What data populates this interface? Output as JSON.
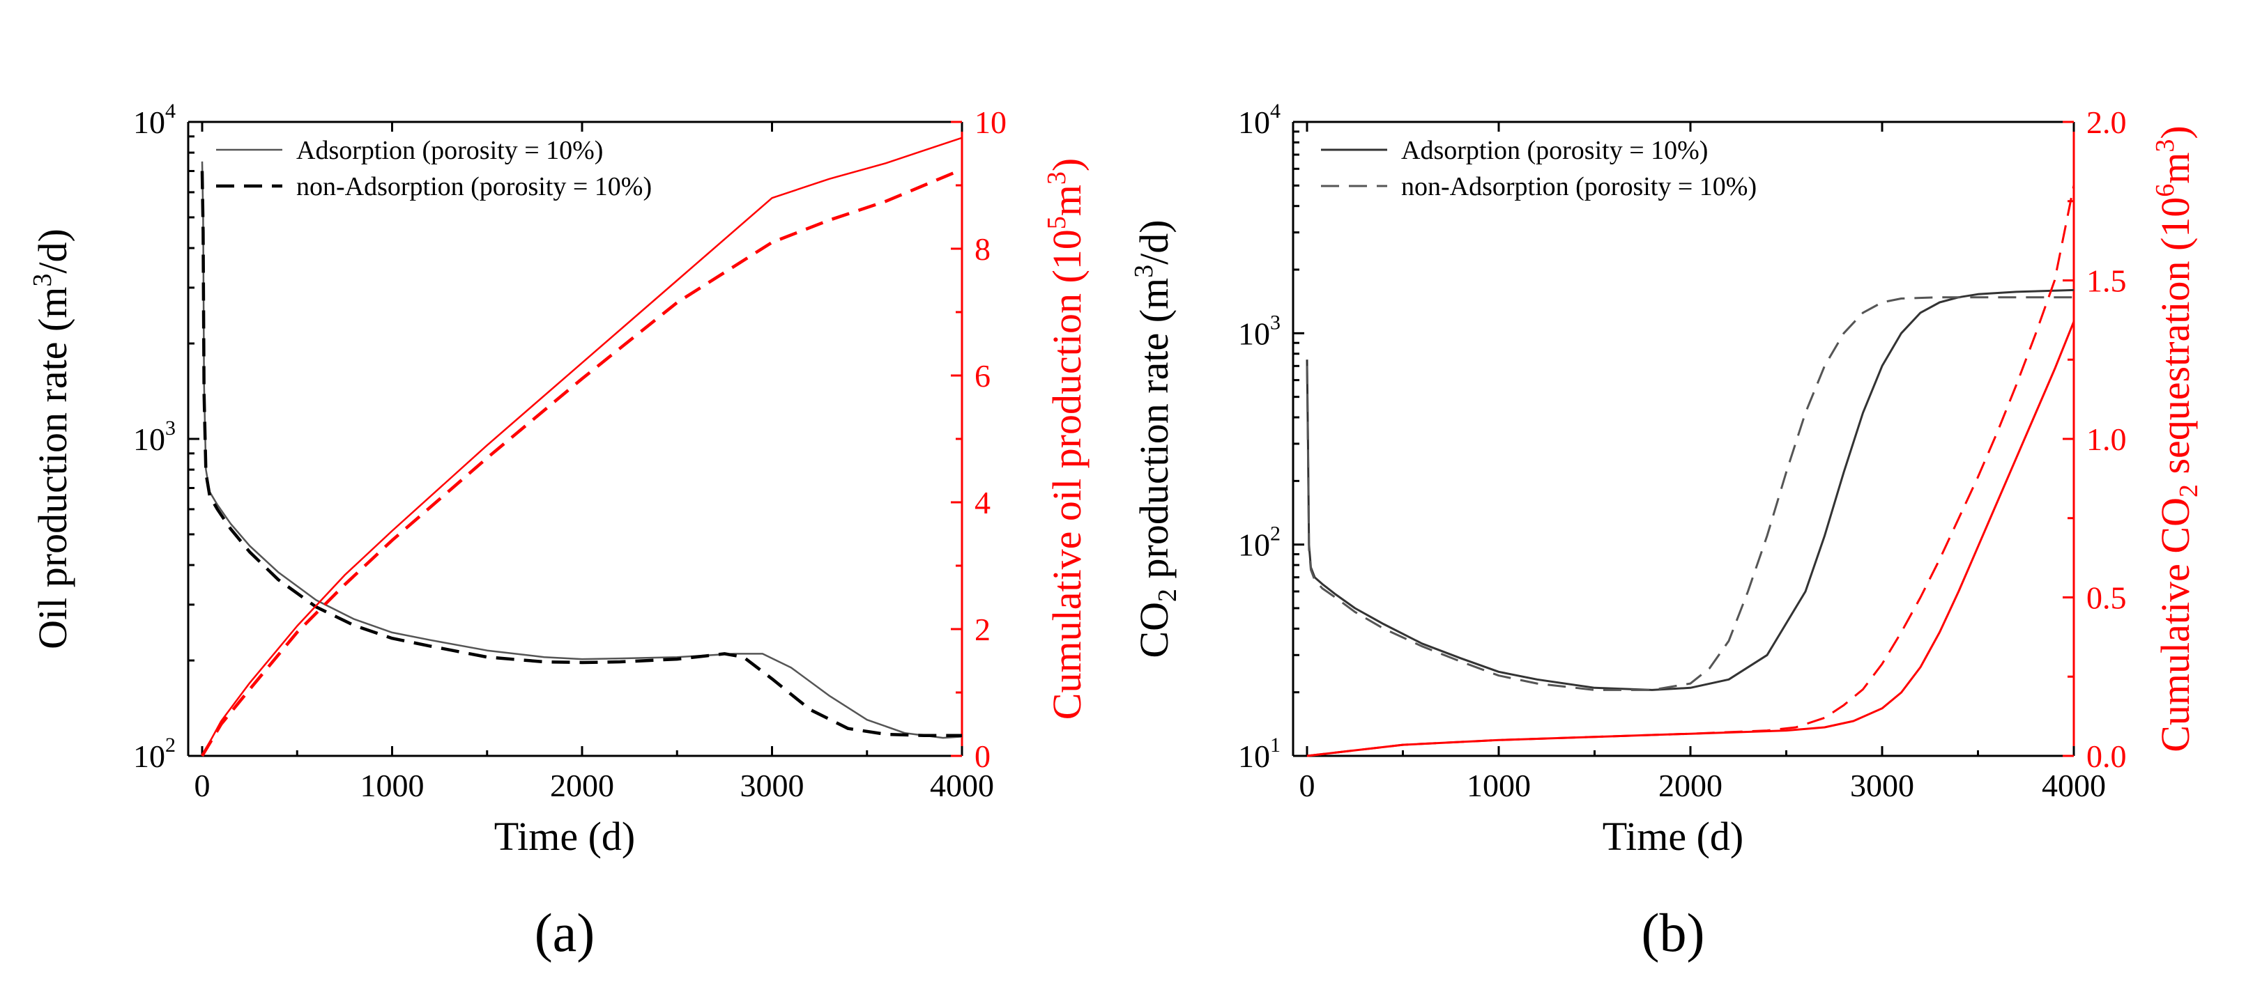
{
  "chart_data": [
    {
      "type": "line",
      "panel_label": "(a)",
      "xlabel": "Time (d)",
      "xlim": [
        0,
        4000
      ],
      "xticks": [
        "0",
        "1000",
        "2000",
        "3000",
        "4000"
      ],
      "left_axis": {
        "label_prefix": "Oil production rate (m",
        "label_sup": "3",
        "label_suffix": "/d)",
        "color": "#000000",
        "scale": "log",
        "ylim": [
          100,
          10000
        ],
        "ticks": [
          {
            "base": "10",
            "exp": "2",
            "value": 100
          },
          {
            "base": "10",
            "exp": "3",
            "value": 1000
          },
          {
            "base": "10",
            "exp": "4",
            "value": 10000
          }
        ]
      },
      "right_axis": {
        "label_prefix": "Cumulative oil production (10",
        "label_sup": "5",
        "label_suffix": "m",
        "label_sup2": "3",
        "label_end": ")",
        "color": "#ff0000",
        "scale": "linear",
        "ylim": [
          0,
          10
        ],
        "ticks": [
          "0",
          "2",
          "4",
          "6",
          "8",
          "10"
        ]
      },
      "legend": [
        "Adsorption (porosity = 10%)",
        "non-Adsorption (porosity = 10%)"
      ],
      "series": [
        {
          "name": "Adsorption rate",
          "axis": "left",
          "color": "#555555",
          "dash": "solid",
          "width": 2.5,
          "x": [
            0,
            5,
            10,
            20,
            40,
            80,
            150,
            250,
            400,
            600,
            800,
            1000,
            1200,
            1500,
            1800,
            2000,
            2200,
            2500,
            2800,
            2950,
            3100,
            3300,
            3500,
            3700,
            3900,
            4000
          ],
          "y": [
            7500,
            5000,
            1500,
            800,
            680,
            620,
            540,
            460,
            380,
            310,
            270,
            245,
            232,
            215,
            205,
            202,
            203,
            205,
            210,
            210,
            190,
            155,
            130,
            118,
            114,
            115
          ]
        },
        {
          "name": "non-Adsorption rate",
          "axis": "left",
          "color": "#000000",
          "dash": "dashed",
          "width": 4.5,
          "x": [
            0,
            5,
            10,
            20,
            40,
            80,
            150,
            250,
            400,
            600,
            800,
            1000,
            1200,
            1500,
            1800,
            2000,
            2200,
            2500,
            2750,
            2850,
            3000,
            3200,
            3400,
            3600,
            3800,
            4000
          ],
          "y": [
            7000,
            4500,
            1400,
            780,
            660,
            600,
            520,
            440,
            360,
            295,
            258,
            235,
            222,
            205,
            198,
            197,
            198,
            202,
            210,
            205,
            175,
            140,
            122,
            117,
            116,
            116
          ]
        },
        {
          "name": "Adsorption cumulative",
          "axis": "right",
          "color": "#ff0000",
          "dash": "solid",
          "width": 2.5,
          "x": [
            0,
            100,
            250,
            500,
            750,
            1000,
            1500,
            2000,
            2500,
            3000,
            3300,
            3600,
            3800,
            4000
          ],
          "y": [
            0,
            0.55,
            1.15,
            2.05,
            2.85,
            3.55,
            4.9,
            6.2,
            7.5,
            8.8,
            9.1,
            9.35,
            9.55,
            9.75
          ]
        },
        {
          "name": "non-Adsorption cumulative",
          "axis": "right",
          "color": "#ff0000",
          "dash": "dashed",
          "width": 4.5,
          "x": [
            0,
            100,
            250,
            500,
            750,
            1000,
            1500,
            2000,
            2500,
            3000,
            3300,
            3600,
            3800,
            4000
          ],
          "y": [
            0,
            0.5,
            1.05,
            1.95,
            2.7,
            3.4,
            4.7,
            5.95,
            7.15,
            8.1,
            8.45,
            8.75,
            9.0,
            9.25
          ]
        }
      ]
    },
    {
      "type": "line",
      "panel_label": "(b)",
      "xlabel": "Time (d)",
      "xlim": [
        0,
        4000
      ],
      "xticks": [
        "0",
        "1000",
        "2000",
        "3000",
        "4000"
      ],
      "left_axis": {
        "label_prefix": "CO",
        "label_sub": "2",
        "label_mid": " production rate (m",
        "label_sup": "3",
        "label_suffix": "/d)",
        "color": "#000000",
        "scale": "log",
        "ylim": [
          10,
          10000
        ],
        "ticks": [
          {
            "base": "10",
            "exp": "1",
            "value": 10
          },
          {
            "base": "10",
            "exp": "2",
            "value": 100
          },
          {
            "base": "10",
            "exp": "3",
            "value": 1000
          },
          {
            "base": "10",
            "exp": "4",
            "value": 10000
          }
        ]
      },
      "right_axis": {
        "label_prefix": "Cumulative CO",
        "label_sub": "2",
        "label_mid": " sequestration (10",
        "label_sup": "6",
        "label_suffix": "m",
        "label_sup2": "3",
        "label_end": ")",
        "color": "#ff0000",
        "scale": "linear",
        "ylim": [
          0,
          2.0
        ],
        "ticks": [
          "0.0",
          "0.5",
          "1.0",
          "1.5",
          "2.0"
        ]
      },
      "legend": [
        "Adsorption (porosity = 10%)",
        "non-Adsorption (porosity = 10%)"
      ],
      "series": [
        {
          "name": "Adsorption rate",
          "axis": "left",
          "color": "#333333",
          "dash": "solid",
          "width": 3,
          "x": [
            0,
            5,
            10,
            20,
            40,
            80,
            150,
            250,
            400,
            600,
            800,
            1000,
            1200,
            1500,
            1800,
            2000,
            2200,
            2400,
            2600,
            2700,
            2800,
            2900,
            3000,
            3100,
            3200,
            3300,
            3400,
            3500,
            3700,
            4000
          ],
          "y": [
            750,
            300,
            100,
            78,
            70,
            65,
            58,
            50,
            42,
            34,
            29,
            25,
            23,
            21,
            20.5,
            21,
            23,
            30,
            60,
            110,
            220,
            420,
            700,
            1000,
            1250,
            1400,
            1480,
            1530,
            1570,
            1600
          ]
        },
        {
          "name": "non-Adsorption rate",
          "axis": "left",
          "color": "#555555",
          "dash": "dashed",
          "width": 3,
          "x": [
            0,
            5,
            10,
            20,
            40,
            80,
            150,
            250,
            400,
            600,
            800,
            1000,
            1200,
            1500,
            1800,
            2000,
            2100,
            2200,
            2300,
            2400,
            2500,
            2600,
            2700,
            2800,
            2900,
            3000,
            3100,
            3300,
            3600,
            4000
          ],
          "y": [
            700,
            280,
            95,
            76,
            68,
            62,
            56,
            48,
            40,
            33,
            28,
            24,
            22,
            20.5,
            20.5,
            22,
            26,
            35,
            60,
            110,
            220,
            420,
            700,
            1000,
            1250,
            1400,
            1460,
            1480,
            1480,
            1480
          ]
        },
        {
          "name": "Adsorption cumulative",
          "axis": "right",
          "color": "#ff0000",
          "dash": "solid",
          "width": 3,
          "x": [
            0,
            500,
            1000,
            1500,
            2000,
            2500,
            2700,
            2850,
            3000,
            3100,
            3200,
            3300,
            3400,
            3500,
            3600,
            3700,
            3800,
            3900,
            4000
          ],
          "y": [
            0,
            0.035,
            0.05,
            0.06,
            0.07,
            0.08,
            0.09,
            0.11,
            0.15,
            0.2,
            0.28,
            0.39,
            0.52,
            0.66,
            0.8,
            0.94,
            1.08,
            1.22,
            1.37
          ]
        },
        {
          "name": "non-Adsorption cumulative",
          "axis": "right",
          "color": "#ff0000",
          "dash": "dashed",
          "width": 3,
          "x": [
            0,
            500,
            1000,
            1500,
            2000,
            2400,
            2550,
            2700,
            2800,
            2900,
            3000,
            3100,
            3200,
            3300,
            3400,
            3500,
            3600,
            3700,
            3800,
            3900,
            4000
          ],
          "y": [
            0,
            0.035,
            0.05,
            0.06,
            0.07,
            0.08,
            0.09,
            0.12,
            0.16,
            0.21,
            0.29,
            0.39,
            0.5,
            0.62,
            0.75,
            0.88,
            1.02,
            1.17,
            1.33,
            1.5,
            1.8
          ]
        }
      ]
    }
  ]
}
